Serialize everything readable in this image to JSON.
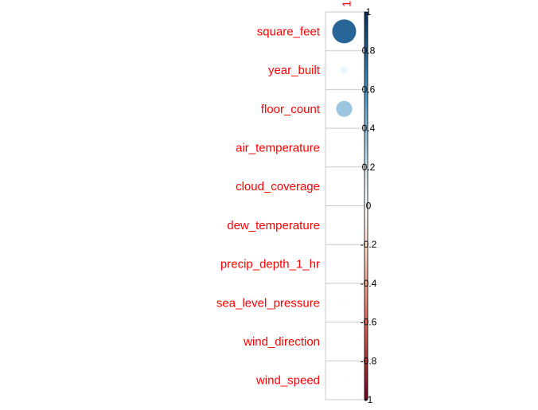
{
  "chart_data": {
    "type": "heatmap",
    "style": "correlation circle plot",
    "columns": [
      "1"
    ],
    "rows": [
      "square_feet",
      "year_built",
      "floor_count",
      "air_temperature",
      "cloud_coverage",
      "dew_temperature",
      "precip_depth_1_hr",
      "sea_level_pressure",
      "wind_direction",
      "wind_speed"
    ],
    "values": [
      0.78,
      0.08,
      0.35,
      0.01,
      0.01,
      0.01,
      0.01,
      0.02,
      0.01,
      0.02
    ],
    "colorbar": {
      "range": [
        -1,
        1
      ],
      "ticks": [
        "1",
        "0.8",
        "0.6",
        "0.4",
        "0.2",
        "0",
        "-0.2",
        "-0.4",
        "-0.6",
        "-0.8",
        "-1"
      ],
      "colors": {
        "negative_end": "#67001f",
        "neutral": "#ffffff",
        "positive_end": "#053061"
      }
    },
    "label_color": "#ff0000",
    "grid": true
  }
}
